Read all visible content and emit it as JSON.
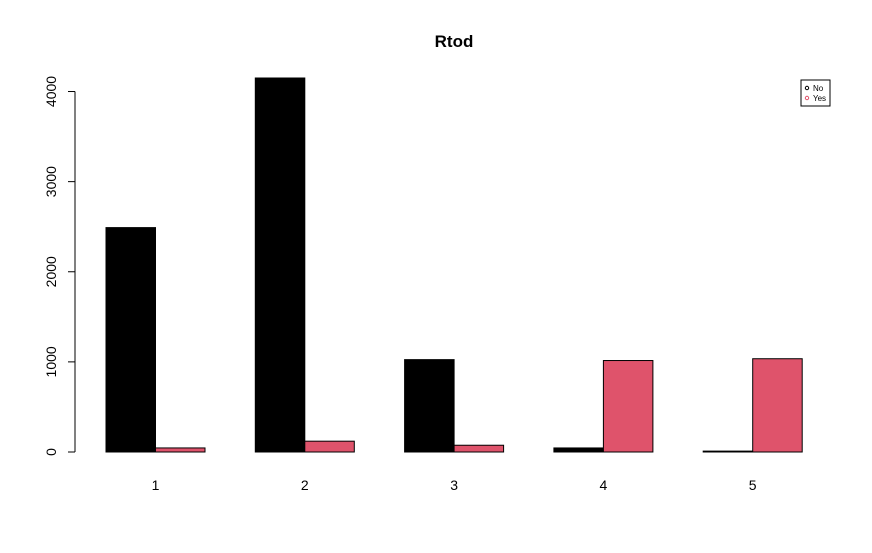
{
  "chart_data": {
    "type": "bar",
    "title": "Rtod",
    "xlabel": "",
    "ylabel": "",
    "categories": [
      "1",
      "2",
      "3",
      "4",
      "5"
    ],
    "series": [
      {
        "name": "No",
        "color": "#000000",
        "values": [
          2490,
          4150,
          1025,
          45,
          10
        ]
      },
      {
        "name": "Yes",
        "color": "#DF536B",
        "values": [
          45,
          120,
          75,
          1015,
          1035
        ]
      }
    ],
    "ylim": [
      0,
      4150
    ],
    "yticks": [
      0,
      1000,
      2000,
      3000,
      4000
    ],
    "legend_position": "top-right",
    "grid": false
  }
}
